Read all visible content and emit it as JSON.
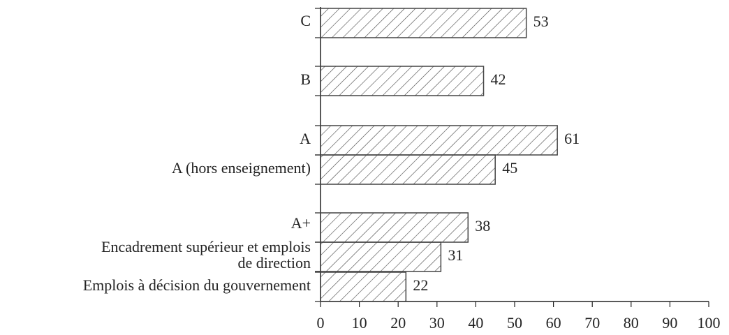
{
  "chart_data": {
    "type": "bar",
    "orientation": "horizontal",
    "categories": [
      "C",
      "B",
      "A",
      "A (hors enseignement)",
      "A+",
      "Encadrement supérieur et emplois\nde direction",
      "Emplois à décision du gouvernement"
    ],
    "values": [
      53,
      42,
      61,
      45,
      38,
      31,
      22
    ],
    "color": "#444444",
    "xlim": [
      0,
      100
    ],
    "xticks": [
      0,
      10,
      20,
      30,
      40,
      50,
      60,
      70,
      80,
      90,
      100
    ]
  }
}
